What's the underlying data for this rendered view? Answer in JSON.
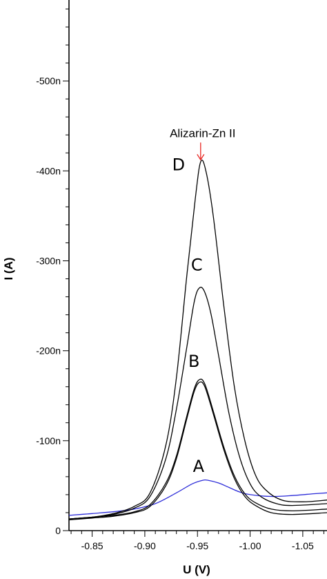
{
  "chart_data": {
    "type": "line",
    "title": "",
    "xlabel": "U (V)",
    "ylabel": "I (A)",
    "xlim": [
      -0.828,
      -1.073
    ],
    "ylim": [
      0,
      -590
    ],
    "x_ticks": [
      -0.85,
      -0.9,
      -0.95,
      -1.0,
      -1.05
    ],
    "x_tick_labels": [
      "-0.85",
      "-0.90",
      "-0.95",
      "-1.00",
      "-1.05"
    ],
    "y_ticks": [
      0,
      -100,
      -200,
      -300,
      -400,
      -500
    ],
    "y_tick_labels": [
      "0",
      "-100n",
      "-200n",
      "-300n",
      "-400n",
      "-500n"
    ],
    "grid": false,
    "legend": "none",
    "annotation": {
      "text": "Alizarin-Zn II",
      "x": -0.953,
      "y": -410,
      "color": "#e8231f"
    },
    "series": [
      {
        "label": "A",
        "color": "#2b2bd8",
        "x": [
          -0.828,
          -0.85,
          -0.87,
          -0.89,
          -0.91,
          -0.93,
          -0.945,
          -0.955,
          -0.96,
          -0.97,
          -0.98,
          -0.99,
          -1.0,
          -1.02,
          -1.04,
          -1.06,
          -1.073
        ],
        "y": [
          -17,
          -19,
          -21,
          -24,
          -30,
          -42,
          -52,
          -56,
          -56,
          -53,
          -48,
          -43,
          -40,
          -38,
          -39,
          -41,
          -42
        ]
      },
      {
        "label": "B",
        "color": "#000000",
        "x": [
          -0.828,
          -0.85,
          -0.87,
          -0.89,
          -0.905,
          -0.92,
          -0.93,
          -0.94,
          -0.947,
          -0.952,
          -0.957,
          -0.965,
          -0.975,
          -0.985,
          -0.995,
          -1.005,
          -1.02,
          -1.04,
          -1.073
        ],
        "y": [
          -12,
          -14,
          -16,
          -20,
          -27,
          -50,
          -80,
          -125,
          -155,
          -165,
          -160,
          -130,
          -90,
          -58,
          -38,
          -28,
          -20,
          -18,
          -20
        ]
      },
      {
        "label": "B",
        "color": "#000000",
        "x": [
          -0.828,
          -0.85,
          -0.87,
          -0.89,
          -0.905,
          -0.92,
          -0.93,
          -0.94,
          -0.947,
          -0.952,
          -0.957,
          -0.965,
          -0.975,
          -0.985,
          -0.995,
          -1.005,
          -1.02,
          -1.04,
          -1.073
        ],
        "y": [
          -13,
          -15,
          -17,
          -21,
          -29,
          -53,
          -83,
          -128,
          -158,
          -168,
          -163,
          -133,
          -93,
          -61,
          -41,
          -31,
          -24,
          -22,
          -24
        ]
      },
      {
        "label": "C",
        "color": "#000000",
        "x": [
          -0.828,
          -0.85,
          -0.87,
          -0.89,
          -0.905,
          -0.92,
          -0.93,
          -0.94,
          -0.947,
          -0.952,
          -0.957,
          -0.963,
          -0.97,
          -0.98,
          -0.99,
          -1.0,
          -1.01,
          -1.025,
          -1.04,
          -1.073
        ],
        "y": [
          -13,
          -15,
          -18,
          -25,
          -38,
          -80,
          -135,
          -205,
          -255,
          -270,
          -265,
          -240,
          -195,
          -130,
          -82,
          -52,
          -38,
          -30,
          -28,
          -30
        ]
      },
      {
        "label": "D",
        "color": "#000000",
        "x": [
          -0.828,
          -0.85,
          -0.87,
          -0.89,
          -0.905,
          -0.92,
          -0.93,
          -0.94,
          -0.948,
          -0.953,
          -0.958,
          -0.965,
          -0.975,
          -0.985,
          -0.995,
          -1.005,
          -1.015,
          -1.03,
          -1.05,
          -1.073
        ],
        "y": [
          -13,
          -15,
          -19,
          -27,
          -42,
          -95,
          -170,
          -285,
          -370,
          -410,
          -400,
          -350,
          -250,
          -160,
          -100,
          -62,
          -45,
          -34,
          -32,
          -34
        ]
      }
    ]
  }
}
